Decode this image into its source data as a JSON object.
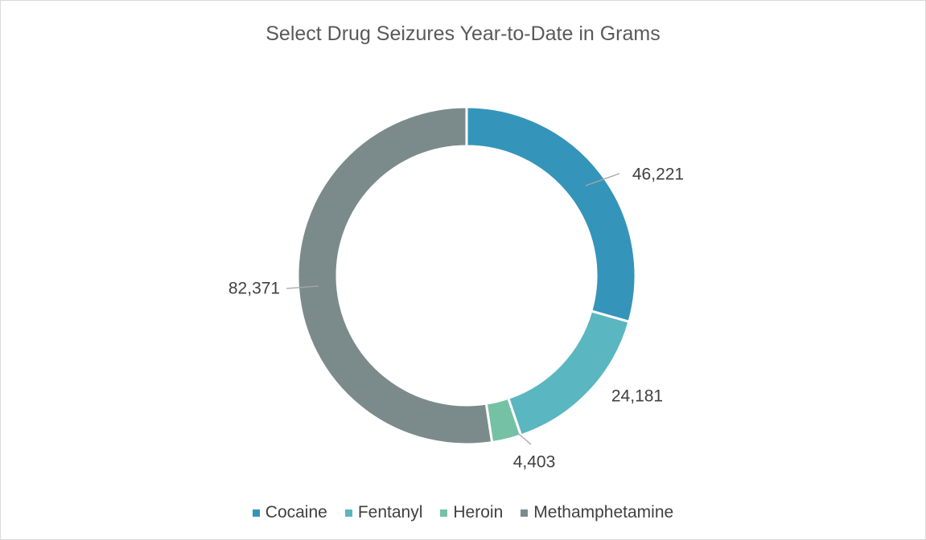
{
  "chart_data": {
    "type": "pie",
    "title": "Select Drug Seizures Year-to-Date in Grams",
    "variant": "doughnut",
    "categories": [
      "Cocaine",
      "Fentanyl",
      "Heroin",
      "Methamphetamine"
    ],
    "values": [
      46221,
      24181,
      4403,
      82371
    ],
    "labels": [
      "46,221",
      "24,181",
      "4,403",
      "82,371"
    ],
    "colors": [
      "#3594ba",
      "#5ab6c1",
      "#75c1a6",
      "#7b8b8c"
    ],
    "legend_position": "bottom"
  }
}
